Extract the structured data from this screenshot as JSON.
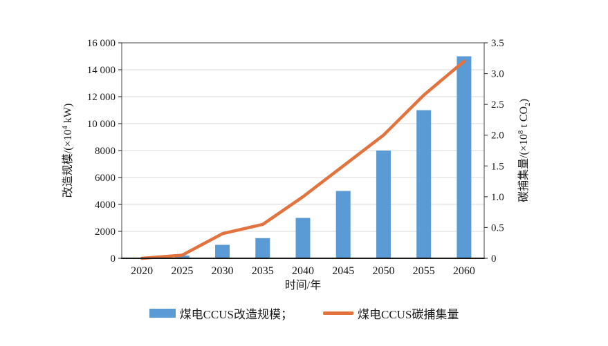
{
  "colors": {
    "bar": "#5B9BD5",
    "line": "#E2733E",
    "grid": "#D9D9D9",
    "frame": "#404040",
    "axis_bottom": "#1A1A1A",
    "text": "#1A1A1A"
  },
  "legend": {
    "bar_label": "煤电CCUS改造规模；",
    "line_label": "煤电CCUS碳捕集量"
  },
  "chart_data": {
    "type": "bar",
    "subtype": "bar+line dual axis",
    "title": "",
    "xlabel": "时间/年",
    "ylabel_left": "改造规模/(×10⁴ kW)",
    "ylabel_right": "碳捕集量/(×10⁸ t CO₂)",
    "categories": [
      "2020",
      "2025",
      "2030",
      "2035",
      "2040",
      "2045",
      "2050",
      "2055",
      "2060"
    ],
    "series": [
      {
        "name": "煤电CCUS改造规模",
        "type": "bar",
        "axis": "left",
        "values": [
          0,
          200,
          1000,
          1500,
          3000,
          5000,
          8000,
          11000,
          15000
        ]
      },
      {
        "name": "煤电CCUS碳捕集量",
        "type": "line",
        "axis": "right",
        "values": [
          0,
          0.05,
          0.4,
          0.55,
          1.0,
          1.5,
          2.0,
          2.65,
          3.2
        ]
      }
    ],
    "ylim_left": [
      0,
      16000
    ],
    "ylim_right": [
      0,
      3.5
    ],
    "yticks_left": [
      "0",
      "2000",
      "4000",
      "6000",
      "8000",
      "10 000",
      "12 000",
      "14 000",
      "16 000"
    ],
    "yticks_right": [
      "0",
      "0.5",
      "1.0",
      "1.5",
      "2.0",
      "2.5",
      "3.0",
      "3.5"
    ],
    "grid": "horizontal",
    "legend_position": "bottom",
    "left_title_parts": {
      "prefix": "改造规模/(×10",
      "sup": "4",
      "suffix": " kW)"
    },
    "right_title_parts": {
      "prefix": "碳捕集量/(×10",
      "sup": "8",
      "mid": " t CO",
      "sub": "2",
      "suffix": ")"
    }
  }
}
